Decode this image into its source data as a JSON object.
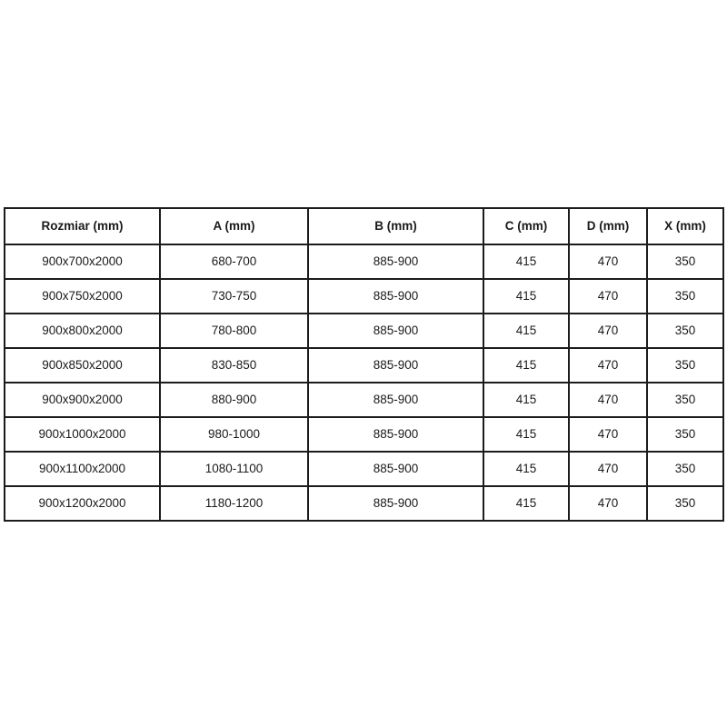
{
  "table": {
    "columns": [
      "Rozmiar (mm)",
      "A (mm)",
      "B (mm)",
      "C (mm)",
      "D (mm)",
      "X (mm)"
    ],
    "rows": [
      [
        "900x700x2000",
        "680-700",
        "885-900",
        "415",
        "470",
        "350"
      ],
      [
        "900x750x2000",
        "730-750",
        "885-900",
        "415",
        "470",
        "350"
      ],
      [
        "900x800x2000",
        "780-800",
        "885-900",
        "415",
        "470",
        "350"
      ],
      [
        "900x850x2000",
        "830-850",
        "885-900",
        "415",
        "470",
        "350"
      ],
      [
        "900x900x2000",
        "880-900",
        "885-900",
        "415",
        "470",
        "350"
      ],
      [
        "900x1000x2000",
        "980-1000",
        "885-900",
        "415",
        "470",
        "350"
      ],
      [
        "900x1100x2000",
        "1080-1100",
        "885-900",
        "415",
        "470",
        "350"
      ],
      [
        "900x1200x2000",
        "1180-1200",
        "885-900",
        "415",
        "470",
        "350"
      ]
    ],
    "colors": {
      "border": "#1c1c1c",
      "text": "#1a1a1a",
      "background": "#ffffff"
    }
  }
}
